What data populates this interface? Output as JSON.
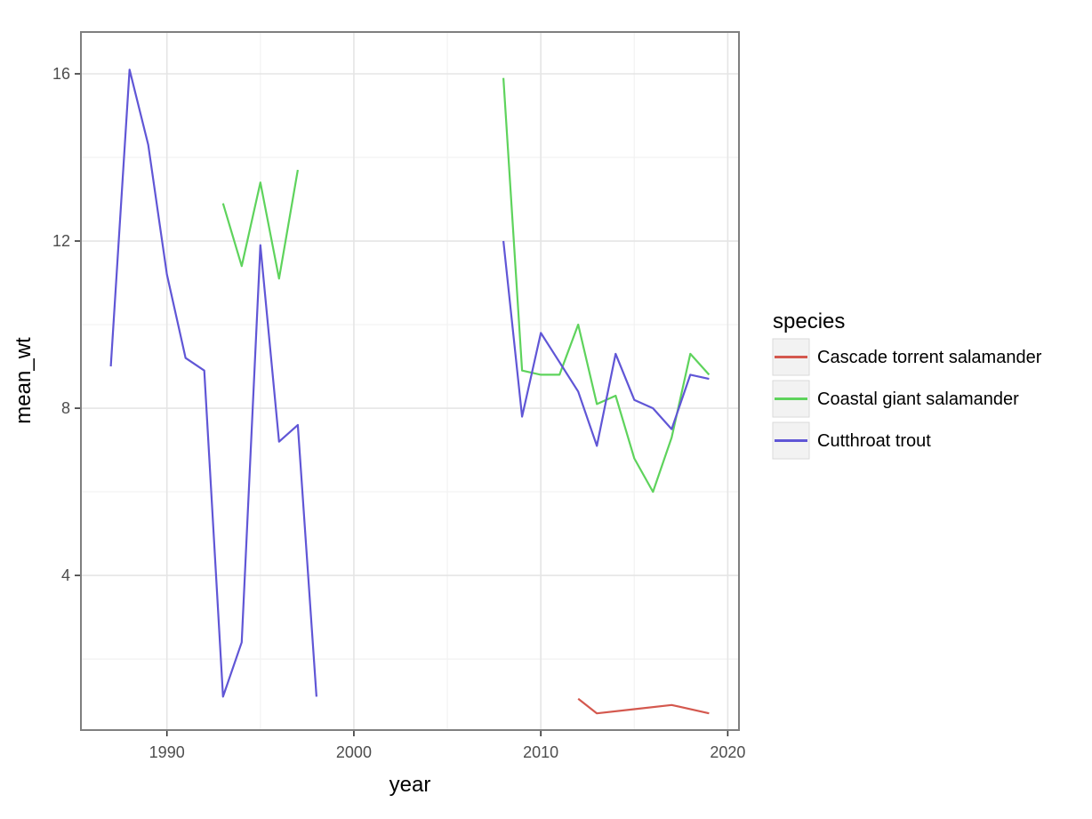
{
  "chart_data": {
    "type": "line",
    "title": "",
    "xlabel": "year",
    "ylabel": "mean_wt",
    "xlim": [
      1985.4,
      2020.6
    ],
    "ylim": [
      0.3,
      17.0
    ],
    "x_ticks": [
      1990,
      2000,
      2010,
      2020
    ],
    "y_ticks": [
      4,
      8,
      12,
      16
    ],
    "x_tick_labels": [
      "1990",
      "2000",
      "2010",
      "2020"
    ],
    "y_tick_labels": [
      "4",
      "8",
      "12",
      "16"
    ],
    "grid": true,
    "legend": {
      "title": "species",
      "position": "right"
    },
    "series": [
      {
        "name": "Cascade torrent salamander",
        "color": "#d4584e",
        "segments": [
          [
            [
              2012,
              1.05
            ],
            [
              2013,
              0.7
            ],
            [
              2015,
              0.8
            ],
            [
              2017,
              0.9
            ],
            [
              2019,
              0.7
            ]
          ]
        ]
      },
      {
        "name": "Coastal giant salamander",
        "color": "#5ed35c",
        "segments": [
          [
            [
              1993,
              12.9
            ],
            [
              1994,
              11.4
            ],
            [
              1995,
              13.4
            ],
            [
              1996,
              11.1
            ],
            [
              1997,
              13.7
            ]
          ],
          [
            [
              2008,
              15.9
            ],
            [
              2009,
              8.9
            ],
            [
              2010,
              8.8
            ],
            [
              2011,
              8.8
            ],
            [
              2012,
              10.0
            ],
            [
              2013,
              8.1
            ],
            [
              2014,
              8.3
            ],
            [
              2015,
              6.8
            ],
            [
              2016,
              6.0
            ],
            [
              2017,
              7.3
            ],
            [
              2018,
              9.3
            ],
            [
              2019,
              8.8
            ]
          ]
        ]
      },
      {
        "name": "Cutthroat trout",
        "color": "#6056d6",
        "segments": [
          [
            [
              1987,
              9.0
            ],
            [
              1988,
              16.1
            ],
            [
              1989,
              14.3
            ],
            [
              1990,
              11.2
            ],
            [
              1991,
              9.2
            ],
            [
              1992,
              8.9
            ],
            [
              1993,
              1.1
            ],
            [
              1994,
              2.4
            ],
            [
              1995,
              11.9
            ],
            [
              1996,
              7.2
            ],
            [
              1997,
              7.6
            ],
            [
              1998,
              1.1
            ]
          ],
          [
            [
              2008,
              12.0
            ],
            [
              2009,
              7.8
            ],
            [
              2010,
              9.8
            ],
            [
              2011,
              9.1
            ],
            [
              2012,
              8.4
            ],
            [
              2013,
              7.1
            ],
            [
              2014,
              9.3
            ],
            [
              2015,
              8.2
            ],
            [
              2016,
              8.0
            ],
            [
              2017,
              7.5
            ],
            [
              2018,
              8.8
            ],
            [
              2019,
              8.7
            ]
          ]
        ]
      }
    ]
  }
}
